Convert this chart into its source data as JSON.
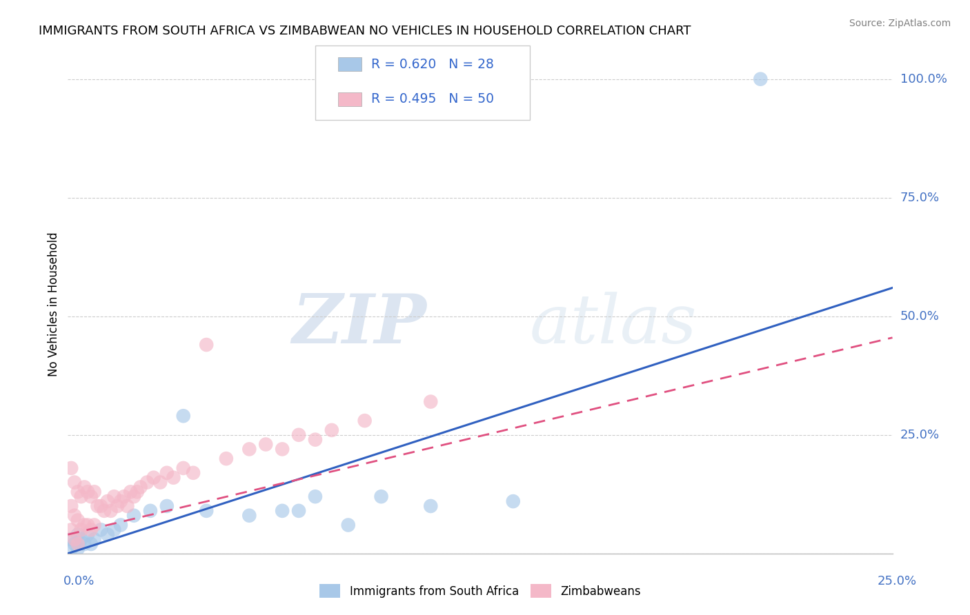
{
  "title": "IMMIGRANTS FROM SOUTH AFRICA VS ZIMBABWEAN NO VEHICLES IN HOUSEHOLD CORRELATION CHART",
  "source": "Source: ZipAtlas.com",
  "ylabel": "No Vehicles in Household",
  "yticks": [
    0.0,
    0.25,
    0.5,
    0.75,
    1.0
  ],
  "ytick_labels": [
    "",
    "25.0%",
    "50.0%",
    "75.0%",
    "100.0%"
  ],
  "legend1_R": "0.620",
  "legend1_N": "28",
  "legend2_R": "0.495",
  "legend2_N": "50",
  "blue_color": "#a8c8e8",
  "pink_color": "#f4b8c8",
  "blue_line_color": "#3060c0",
  "pink_line_color": "#e05080",
  "watermark_zip": "ZIP",
  "watermark_atlas": "atlas",
  "xmin": 0.0,
  "xmax": 0.25,
  "ymin": 0.0,
  "ymax": 1.05,
  "blue_line_x": [
    0.0,
    0.25
  ],
  "blue_line_y": [
    0.0,
    0.56
  ],
  "pink_line_x": [
    0.0,
    0.25
  ],
  "pink_line_y": [
    0.04,
    0.455
  ],
  "blue_points_x": [
    0.001,
    0.001,
    0.002,
    0.003,
    0.003,
    0.004,
    0.005,
    0.006,
    0.007,
    0.008,
    0.01,
    0.012,
    0.014,
    0.016,
    0.02,
    0.025,
    0.03,
    0.035,
    0.042,
    0.055,
    0.065,
    0.07,
    0.075,
    0.085,
    0.095,
    0.11,
    0.135,
    0.21
  ],
  "blue_points_y": [
    0.03,
    0.01,
    0.02,
    0.04,
    0.01,
    0.03,
    0.02,
    0.04,
    0.02,
    0.03,
    0.05,
    0.04,
    0.05,
    0.06,
    0.08,
    0.09,
    0.1,
    0.29,
    0.09,
    0.08,
    0.09,
    0.09,
    0.12,
    0.06,
    0.12,
    0.1,
    0.11,
    1.0
  ],
  "pink_points_x": [
    0.001,
    0.001,
    0.001,
    0.002,
    0.002,
    0.002,
    0.003,
    0.003,
    0.003,
    0.004,
    0.004,
    0.005,
    0.005,
    0.006,
    0.006,
    0.007,
    0.007,
    0.008,
    0.008,
    0.009,
    0.01,
    0.011,
    0.012,
    0.013,
    0.014,
    0.015,
    0.016,
    0.017,
    0.018,
    0.019,
    0.02,
    0.021,
    0.022,
    0.024,
    0.026,
    0.028,
    0.03,
    0.032,
    0.035,
    0.038,
    0.042,
    0.048,
    0.055,
    0.06,
    0.065,
    0.07,
    0.075,
    0.08,
    0.09,
    0.11
  ],
  "pink_points_y": [
    0.18,
    0.1,
    0.05,
    0.15,
    0.08,
    0.03,
    0.13,
    0.07,
    0.02,
    0.12,
    0.05,
    0.14,
    0.06,
    0.13,
    0.06,
    0.12,
    0.05,
    0.13,
    0.06,
    0.1,
    0.1,
    0.09,
    0.11,
    0.09,
    0.12,
    0.1,
    0.11,
    0.12,
    0.1,
    0.13,
    0.12,
    0.13,
    0.14,
    0.15,
    0.16,
    0.15,
    0.17,
    0.16,
    0.18,
    0.17,
    0.44,
    0.2,
    0.22,
    0.23,
    0.22,
    0.25,
    0.24,
    0.26,
    0.28,
    0.32
  ]
}
